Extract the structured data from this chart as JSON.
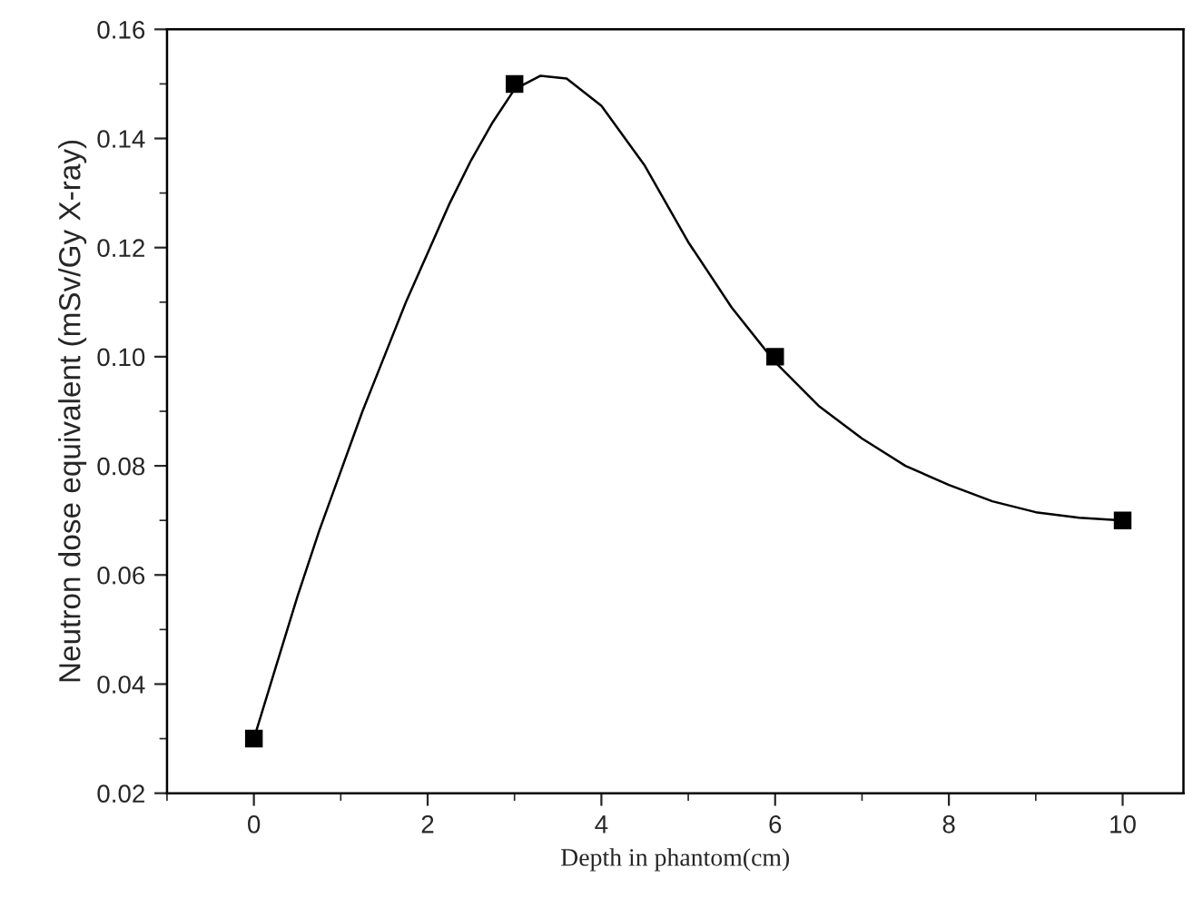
{
  "chart_data": {
    "type": "scatter",
    "xlabel": "Depth in phantom(cm)",
    "ylabel": "Neutron dose equivalent (mSv/Gy X-ray)",
    "x": [
      0,
      3,
      6,
      10
    ],
    "series": [
      {
        "color": "#000000",
        "marker": "square",
        "values": [
          0.03,
          0.15,
          0.1,
          0.07
        ]
      },
      {
        "type": "line",
        "color": "#000000",
        "marker": "none",
        "x": [
          0,
          0.25,
          0.5,
          0.75,
          1,
          1.25,
          1.5,
          1.75,
          2,
          2.25,
          2.5,
          2.75,
          3,
          3.3,
          3.6,
          4,
          4.5,
          5,
          5.5,
          6,
          6.5,
          7,
          7.5,
          8,
          8.5,
          9,
          9.5,
          10
        ],
        "values": [
          0.03,
          0.043,
          0.056,
          0.068,
          0.079,
          0.09,
          0.1,
          0.11,
          0.119,
          0.128,
          0.136,
          0.143,
          0.149,
          0.1515,
          0.151,
          0.146,
          0.135,
          0.121,
          0.109,
          0.099,
          0.091,
          0.085,
          0.08,
          0.0765,
          0.0735,
          0.0715,
          0.0705,
          0.07
        ]
      }
    ],
    "line_style": "solid",
    "grid": false,
    "legend": false,
    "xlim": [
      -1,
      10.7
    ],
    "xticks": [
      0,
      2,
      4,
      6,
      8,
      10
    ],
    "ylim": [
      0.02,
      0.16
    ],
    "yticks": [
      {
        "value": 0.02,
        "label": "0.02"
      },
      {
        "value": 0.04,
        "label": "0.04"
      },
      {
        "value": 0.06,
        "label": "0.06"
      },
      {
        "value": 0.08,
        "label": "0.08"
      },
      {
        "value": 0.1,
        "label": "0.10"
      },
      {
        "value": 0.12,
        "label": "0.12"
      },
      {
        "value": 0.14,
        "label": "0.14"
      },
      {
        "value": 0.16,
        "label": "0.16"
      }
    ]
  }
}
